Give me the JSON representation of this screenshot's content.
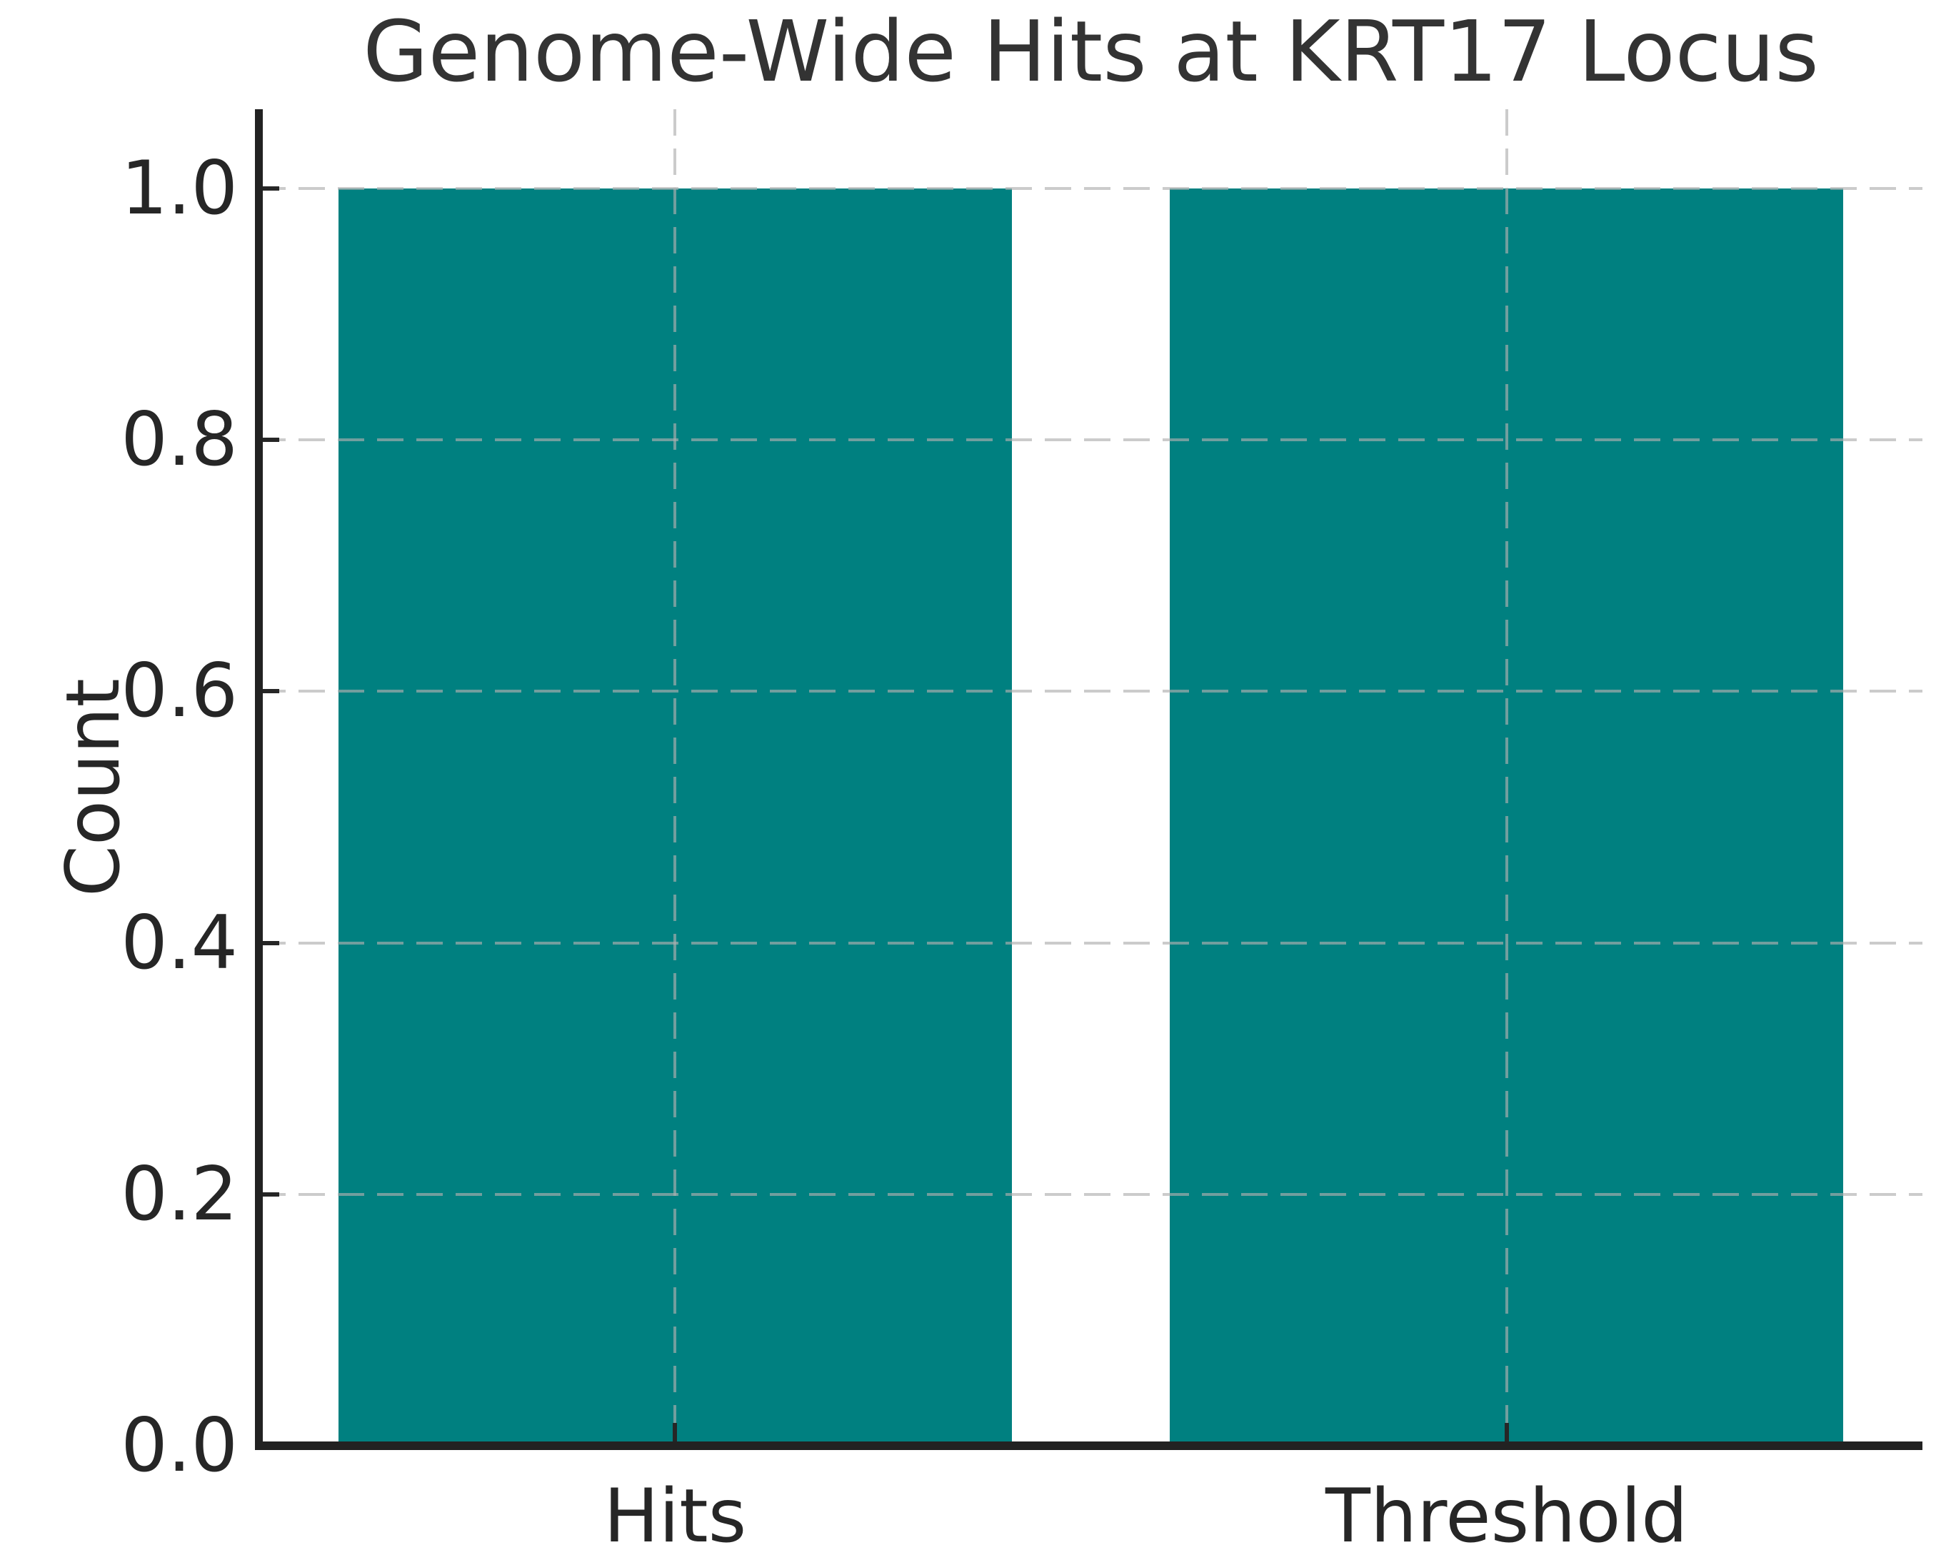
{
  "figure": {
    "title": "Genome-Wide Hits at KRT17 Locus",
    "background_color": "#ffffff"
  },
  "chart_data": {
    "type": "bar",
    "title": "Genome-Wide Hits at KRT17 Locus",
    "categories": [
      "Hits",
      "Threshold"
    ],
    "values": [
      1.0,
      1.0
    ],
    "xlabel": "",
    "ylabel": "Count",
    "ylim": [
      0,
      1.063
    ],
    "yticks": [
      0.0,
      0.2,
      0.4,
      0.6,
      0.8,
      1.0
    ],
    "ytick_labels": [
      "0.0",
      "0.2",
      "0.4",
      "0.6",
      "0.8",
      "1.0"
    ],
    "bar_color": "#008080",
    "bar_width_fraction": 0.81,
    "grid": true,
    "grid_style": "dashed",
    "grid_color": "#c9c9c9",
    "grid_over_bars": true,
    "spine_color": "#222222",
    "text_color": "#262626",
    "legend": null
  }
}
